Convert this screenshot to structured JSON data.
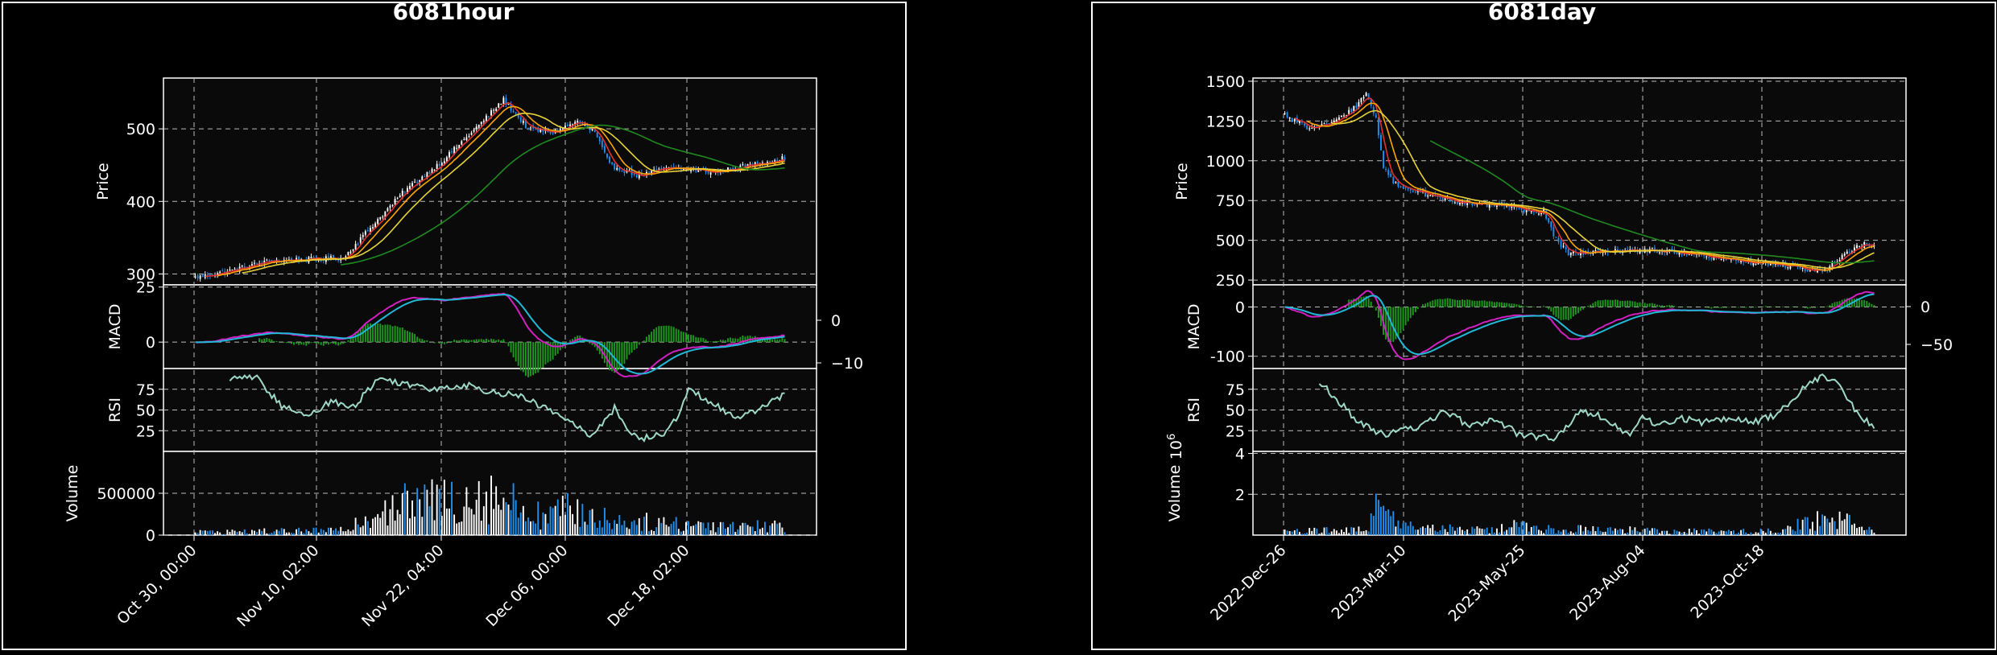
{
  "colors": {
    "background": "#000000",
    "panel": "#0a0a0a",
    "frame": "#ffffff",
    "grid": "#bbbbbb",
    "candle_up": "#ffffff",
    "candle_down": "#1f8ff0",
    "ma_fast": "#e53030",
    "ma_mid": "#ffa500",
    "ma_slow": "#e6d23a",
    "ma_long": "#1f8a1f",
    "macd_line": "#d020c0",
    "signal_line": "#22b8d8",
    "histogram": "#1e9a1e",
    "rsi_line": "#9ed8c8",
    "volume_up": "#ffffff",
    "volume_down": "#1f8ff0"
  },
  "chart_data": [
    {
      "type": "candlestick",
      "title": "6081hour",
      "scale": "1h",
      "panels": {
        "price": {
          "ylabel": "Price",
          "yticks": [
            300,
            400,
            500
          ],
          "ylim": [
            285,
            570
          ]
        },
        "macd": {
          "ylabel": "MACD",
          "left_ticks": [
            0,
            25
          ],
          "right_ticks": [
            0,
            -10
          ],
          "ylim": [
            -12,
            26
          ]
        },
        "rsi": {
          "ylabel": "RSI",
          "yticks": [
            25,
            50,
            75
          ],
          "ylim": [
            0,
            100
          ]
        },
        "volume": {
          "ylabel": "Volume",
          "yticks": [
            0,
            500000
          ],
          "ylim": [
            0,
            1000000
          ],
          "exponent_label": ""
        }
      },
      "xticks": [
        "Oct 30, 00:00",
        "Nov 10, 02:00",
        "Nov 22, 04:00",
        "Dec 06, 00:00",
        "Dec 18, 02:00"
      ],
      "n_bars": 240,
      "anchors": {
        "price": [
          [
            0,
            295
          ],
          [
            15,
            305
          ],
          [
            30,
            318
          ],
          [
            45,
            320
          ],
          [
            60,
            322
          ],
          [
            70,
            360
          ],
          [
            85,
            415
          ],
          [
            100,
            455
          ],
          [
            115,
            505
          ],
          [
            125,
            540
          ],
          [
            135,
            500
          ],
          [
            145,
            495
          ],
          [
            155,
            510
          ],
          [
            162,
            495
          ],
          [
            168,
            450
          ],
          [
            180,
            435
          ],
          [
            190,
            445
          ],
          [
            200,
            445
          ],
          [
            210,
            440
          ],
          [
            225,
            450
          ],
          [
            239,
            460
          ]
        ],
        "volume": [
          [
            0,
            40000
          ],
          [
            60,
            60000
          ],
          [
            75,
            350000
          ],
          [
            100,
            430000
          ],
          [
            120,
            520000
          ],
          [
            140,
            250000
          ],
          [
            150,
            320000
          ],
          [
            170,
            180000
          ],
          [
            200,
            140000
          ],
          [
            239,
            110000
          ]
        ],
        "rsi": [
          [
            0,
            60
          ],
          [
            15,
            90
          ],
          [
            25,
            88
          ],
          [
            35,
            55
          ],
          [
            45,
            42
          ],
          [
            55,
            60
          ],
          [
            65,
            55
          ],
          [
            70,
            75
          ],
          [
            75,
            88
          ],
          [
            85,
            82
          ],
          [
            95,
            76
          ],
          [
            110,
            80
          ],
          [
            120,
            72
          ],
          [
            130,
            68
          ],
          [
            140,
            55
          ],
          [
            150,
            40
          ],
          [
            160,
            18
          ],
          [
            165,
            35
          ],
          [
            170,
            52
          ],
          [
            175,
            28
          ],
          [
            180,
            15
          ],
          [
            190,
            20
          ],
          [
            195,
            40
          ],
          [
            200,
            75
          ],
          [
            210,
            58
          ],
          [
            220,
            38
          ],
          [
            230,
            55
          ],
          [
            239,
            68
          ]
        ]
      }
    },
    {
      "type": "candlestick",
      "title": "6081day",
      "scale": "1d",
      "panels": {
        "price": {
          "ylabel": "Price",
          "yticks": [
            250,
            500,
            750,
            1000,
            1250,
            1500
          ],
          "ylim": [
            220,
            1520
          ]
        },
        "macd": {
          "ylabel": "MACD",
          "left_ticks": [
            0,
            -100
          ],
          "right_ticks": [
            0,
            -50
          ],
          "ylim": [
            -125,
            45
          ]
        },
        "rsi": {
          "ylabel": "RSI",
          "yticks": [
            25,
            50,
            75
          ],
          "ylim": [
            0,
            100
          ]
        },
        "volume": {
          "ylabel": "Volume",
          "yticks": [
            2,
            4
          ],
          "ylim": [
            0,
            4.1
          ],
          "exponent_label": "10"
        }
      },
      "xticks": [
        "2022-Dec-26",
        "2023-Mar-10",
        "2023-May-25",
        "2023-Aug-04",
        "2023-Oct-18"
      ],
      "n_bars": 240,
      "anchors": {
        "price": [
          [
            0,
            1290
          ],
          [
            10,
            1200
          ],
          [
            20,
            1240
          ],
          [
            28,
            1330
          ],
          [
            33,
            1420
          ],
          [
            37,
            1260
          ],
          [
            40,
            950
          ],
          [
            45,
            850
          ],
          [
            55,
            800
          ],
          [
            70,
            740
          ],
          [
            85,
            720
          ],
          [
            98,
            690
          ],
          [
            105,
            680
          ],
          [
            110,
            500
          ],
          [
            115,
            420
          ],
          [
            135,
            430
          ],
          [
            150,
            440
          ],
          [
            170,
            400
          ],
          [
            190,
            360
          ],
          [
            205,
            340
          ],
          [
            210,
            320
          ],
          [
            218,
            300
          ],
          [
            222,
            360
          ],
          [
            228,
            420
          ],
          [
            235,
            480
          ],
          [
            239,
            460
          ]
        ],
        "volume": [
          [
            0,
            0.2
          ],
          [
            34,
            0.3
          ],
          [
            38,
            2.0
          ],
          [
            45,
            0.5
          ],
          [
            70,
            0.35
          ],
          [
            85,
            0.25
          ],
          [
            94,
            0.6
          ],
          [
            100,
            0.3
          ],
          [
            130,
            0.3
          ],
          [
            160,
            0.2
          ],
          [
            200,
            0.2
          ],
          [
            210,
            0.6
          ],
          [
            220,
            0.8
          ],
          [
            230,
            0.6
          ],
          [
            239,
            0.3
          ]
        ],
        "rsi": [
          [
            0,
            40
          ],
          [
            8,
            70
          ],
          [
            15,
            82
          ],
          [
            22,
            60
          ],
          [
            30,
            35
          ],
          [
            40,
            20
          ],
          [
            55,
            30
          ],
          [
            65,
            50
          ],
          [
            75,
            30
          ],
          [
            85,
            40
          ],
          [
            95,
            20
          ],
          [
            110,
            15
          ],
          [
            120,
            50
          ],
          [
            130,
            40
          ],
          [
            140,
            20
          ],
          [
            145,
            45
          ],
          [
            150,
            30
          ],
          [
            160,
            40
          ],
          [
            170,
            35
          ],
          [
            180,
            40
          ],
          [
            190,
            35
          ],
          [
            200,
            45
          ],
          [
            210,
            75
          ],
          [
            218,
            92
          ],
          [
            225,
            80
          ],
          [
            232,
            45
          ],
          [
            239,
            30
          ]
        ]
      }
    }
  ]
}
